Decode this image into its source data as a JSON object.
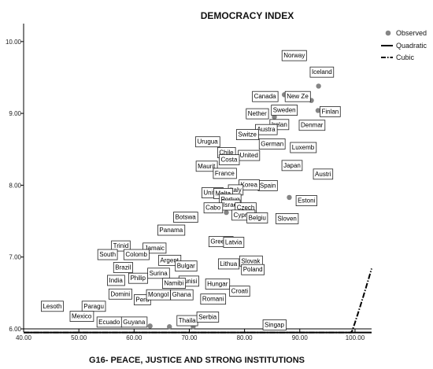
{
  "chart_data": {
    "type": "scatter",
    "title": "DEMOCRACY INDEX",
    "xlabel": "G16- PEACE, JUSTICE AND STRONG INSTITUTIONS",
    "ylabel": "",
    "xlim": [
      40,
      103
    ],
    "ylim": [
      6.0,
      10.25
    ],
    "xticks": [
      "40.00",
      "50.00",
      "60.00",
      "70.00",
      "80.00",
      "90.00",
      "100.00"
    ],
    "yticks": [
      "6.00",
      "7.00",
      "8.00",
      "9.00",
      "10.00"
    ],
    "grid": false,
    "legend_position": "top-right",
    "legend": [
      {
        "label": "Observed",
        "kind": "marker"
      },
      {
        "label": "Quadratic",
        "kind": "solid-line"
      },
      {
        "label": "Cubic",
        "kind": "dash-dot-line"
      }
    ],
    "colors": {
      "marker": "#858585",
      "fit": "#000000"
    },
    "points": [
      {
        "x": 89.0,
        "y": 9.81,
        "label": "Norway"
      },
      {
        "x": 94.0,
        "y": 9.58,
        "label": "Iceland"
      },
      {
        "x": 93.4,
        "y": 9.38
      },
      {
        "x": 83.7,
        "y": 9.24,
        "label": "Canada"
      },
      {
        "x": 89.6,
        "y": 9.24,
        "label": "New Ze"
      },
      {
        "x": 87.2,
        "y": 9.26
      },
      {
        "x": 92.1,
        "y": 9.18
      },
      {
        "x": 87.2,
        "y": 9.05,
        "label": "Sweden"
      },
      {
        "x": 93.3,
        "y": 9.04
      },
      {
        "x": 95.5,
        "y": 9.03,
        "label": "Finlan"
      },
      {
        "x": 82.3,
        "y": 9.0,
        "label": "Nether"
      },
      {
        "x": 85.4,
        "y": 8.95
      },
      {
        "x": 86.3,
        "y": 8.85,
        "label": "Irelan"
      },
      {
        "x": 92.2,
        "y": 8.84,
        "label": "Denmar"
      },
      {
        "x": 83.9,
        "y": 8.78,
        "label": "Austra"
      },
      {
        "x": 80.5,
        "y": 8.71,
        "label": "Switze"
      },
      {
        "x": 85.0,
        "y": 8.58,
        "label": "German"
      },
      {
        "x": 90.6,
        "y": 8.53,
        "label": "Luxemb"
      },
      {
        "x": 73.3,
        "y": 8.61,
        "label": "Urugua"
      },
      {
        "x": 76.7,
        "y": 8.46,
        "label": "Chile"
      },
      {
        "x": 80.8,
        "y": 8.42,
        "label": "United"
      },
      {
        "x": 73.1,
        "y": 8.27,
        "label": "Maurit"
      },
      {
        "x": 77.2,
        "y": 8.36,
        "label": "Costa"
      },
      {
        "x": 88.6,
        "y": 8.28,
        "label": "Japan"
      },
      {
        "x": 76.4,
        "y": 8.17,
        "label": "France"
      },
      {
        "x": 94.2,
        "y": 8.16,
        "label": "Austri"
      },
      {
        "x": 84.2,
        "y": 8.0,
        "label": "Spain"
      },
      {
        "x": 80.8,
        "y": 8.01,
        "label": "Korea"
      },
      {
        "x": 78.4,
        "y": 7.94,
        "label": "Italy"
      },
      {
        "x": 74.2,
        "y": 7.9,
        "label": "United"
      },
      {
        "x": 76.1,
        "y": 7.89,
        "label": "Malta"
      },
      {
        "x": 77.4,
        "y": 7.81,
        "label": "Portug"
      },
      {
        "x": 88.1,
        "y": 7.83
      },
      {
        "x": 91.2,
        "y": 7.79,
        "label": "Estoni"
      },
      {
        "x": 77.5,
        "y": 7.73,
        "label": "Israel"
      },
      {
        "x": 74.3,
        "y": 7.69,
        "label": "Cabo"
      },
      {
        "x": 76.7,
        "y": 7.62
      },
      {
        "x": 80.2,
        "y": 7.69,
        "label": "Czech"
      },
      {
        "x": 69.3,
        "y": 7.56,
        "label": "Botswa"
      },
      {
        "x": 79.8,
        "y": 7.59,
        "label": "Cyprus"
      },
      {
        "x": 82.3,
        "y": 7.55,
        "label": "Belgiu"
      },
      {
        "x": 87.7,
        "y": 7.54,
        "label": "Sloven"
      },
      {
        "x": 66.7,
        "y": 7.38,
        "label": "Panama"
      },
      {
        "x": 75.7,
        "y": 7.22,
        "label": "Greece"
      },
      {
        "x": 78.0,
        "y": 7.21,
        "label": "Latvia"
      },
      {
        "x": 57.6,
        "y": 7.16,
        "label": "Trinid"
      },
      {
        "x": 63.7,
        "y": 7.13,
        "label": "Jamaic"
      },
      {
        "x": 60.4,
        "y": 7.04,
        "label": "Colomb"
      },
      {
        "x": 55.2,
        "y": 7.04,
        "label": "South"
      },
      {
        "x": 81.1,
        "y": 6.95,
        "label": "Slovak"
      },
      {
        "x": 77.1,
        "y": 6.91,
        "label": "Lithua"
      },
      {
        "x": 66.4,
        "y": 6.96,
        "label": "Argent"
      },
      {
        "x": 69.4,
        "y": 6.88,
        "label": "Bulgar"
      },
      {
        "x": 58.0,
        "y": 6.86,
        "label": "Brazil"
      },
      {
        "x": 81.5,
        "y": 6.83,
        "label": "Poland"
      },
      {
        "x": 64.4,
        "y": 6.78,
        "label": "Surina"
      },
      {
        "x": 60.7,
        "y": 6.71,
        "label": "Philip"
      },
      {
        "x": 56.7,
        "y": 6.68,
        "label": "India"
      },
      {
        "x": 69.9,
        "y": 6.67,
        "label": "Tunisi"
      },
      {
        "x": 75.1,
        "y": 6.63,
        "label": "Hungar"
      },
      {
        "x": 67.2,
        "y": 6.64,
        "label": "Namibi"
      },
      {
        "x": 79.1,
        "y": 6.53,
        "label": "Croati"
      },
      {
        "x": 57.5,
        "y": 6.49,
        "label": "Domini"
      },
      {
        "x": 61.5,
        "y": 6.41,
        "label": "Peru"
      },
      {
        "x": 64.4,
        "y": 6.48,
        "label": "Mongol"
      },
      {
        "x": 68.6,
        "y": 6.48,
        "label": "Ghana"
      },
      {
        "x": 74.3,
        "y": 6.42,
        "label": "Romani"
      },
      {
        "x": 45.2,
        "y": 6.32,
        "label": "Lesoth"
      },
      {
        "x": 52.7,
        "y": 6.32,
        "label": "Paragu"
      },
      {
        "x": 50.5,
        "y": 6.18,
        "label": "Mexico"
      },
      {
        "x": 55.5,
        "y": 6.1,
        "label": "Ecuado"
      },
      {
        "x": 60.0,
        "y": 6.1,
        "label": "Guyana"
      },
      {
        "x": 69.6,
        "y": 6.12,
        "label": "Thaila"
      },
      {
        "x": 73.3,
        "y": 6.17,
        "label": "Serbia"
      },
      {
        "x": 85.4,
        "y": 6.06,
        "label": "Singap"
      },
      {
        "x": 62.9,
        "y": 6.04
      },
      {
        "x": 66.4,
        "y": 6.03
      },
      {
        "x": 70.7,
        "y": 6.03
      }
    ],
    "quadratic_fit": {
      "a": 11.58,
      "b": -0.2672,
      "c": 0.002035
    },
    "cubic_fit": {
      "a": 5.19,
      "b": 0.0505,
      "c": -0.003085,
      "d": 2.67e-05
    }
  }
}
